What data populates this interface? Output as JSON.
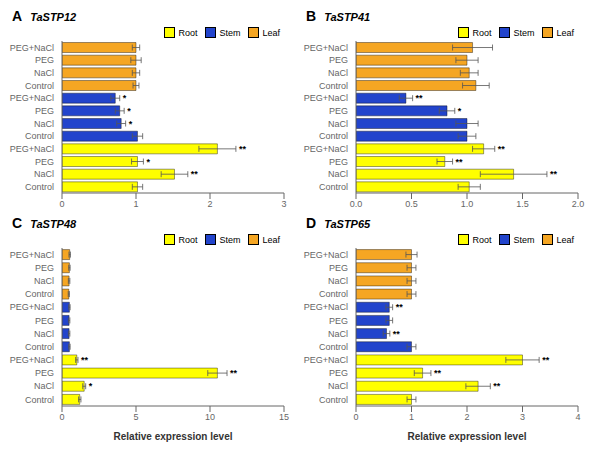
{
  "chart_data": [
    {
      "type": "bar",
      "orientation": "horizontal",
      "panel_label": "A",
      "title": "TaSTP12",
      "categories": [
        "Control",
        "NaCl",
        "PEG",
        "PEG+NaCl",
        "Control",
        "NaCl",
        "PEG",
        "PEG+NaCl",
        "Control",
        "NaCl",
        "PEG",
        "PEG+NaCl"
      ],
      "xlim": [
        0,
        3
      ],
      "xticks": [
        0,
        1,
        2,
        3
      ],
      "legend": "upper right",
      "series": [
        {
          "name": "Root",
          "color": "#FFFF00",
          "values": [
            1.02,
            1.52,
            1.02,
            2.1,
            null,
            null,
            null,
            null,
            null,
            null,
            null,
            null
          ],
          "errors": [
            0.07,
            0.18,
            0.08,
            0.25,
            null,
            null,
            null,
            null,
            null,
            null,
            null,
            null
          ],
          "annotations": [
            null,
            "**",
            "*",
            "**",
            null,
            null,
            null,
            null,
            null,
            null,
            null,
            null
          ]
        },
        {
          "name": "Stem",
          "color": "#2244CC",
          "values": [
            null,
            null,
            null,
            null,
            1.02,
            0.8,
            0.78,
            0.72,
            null,
            null,
            null,
            null
          ],
          "errors": [
            null,
            null,
            null,
            null,
            0.07,
            0.06,
            0.06,
            0.06,
            null,
            null,
            null,
            null
          ],
          "annotations": [
            null,
            null,
            null,
            null,
            null,
            "*",
            "*",
            "*",
            null,
            null,
            null,
            null
          ]
        },
        {
          "name": "Leaf",
          "color": "#F5A623",
          "values": [
            null,
            null,
            null,
            null,
            null,
            null,
            null,
            null,
            1.0,
            1.0,
            1.0,
            1.0
          ],
          "errors": [
            null,
            null,
            null,
            null,
            null,
            null,
            null,
            null,
            0.04,
            0.05,
            0.07,
            0.05
          ],
          "annotations": [
            null,
            null,
            null,
            null,
            null,
            null,
            null,
            null,
            null,
            null,
            null,
            null
          ]
        }
      ]
    },
    {
      "type": "bar",
      "orientation": "horizontal",
      "panel_label": "B",
      "title": "TaSTP41",
      "categories": [
        "Control",
        "NaCl",
        "PEG",
        "PEG+NaCl",
        "Control",
        "NaCl",
        "PEG",
        "PEG+NaCl",
        "Control",
        "NaCl",
        "PEG",
        "PEG+NaCl"
      ],
      "xlim": [
        0,
        2.0
      ],
      "xticks": [
        {
          "value": 0,
          "label": "0.0"
        },
        0.5,
        {
          "value": 1.0,
          "label": "1.0"
        },
        1.5,
        {
          "value": 2.0,
          "label": "2.0"
        }
      ],
      "legend": "upper right",
      "series": [
        {
          "name": "Root",
          "color": "#FFFF00",
          "values": [
            1.02,
            1.42,
            0.8,
            1.15,
            null,
            null,
            null,
            null,
            null,
            null,
            null,
            null
          ],
          "errors": [
            0.1,
            0.3,
            0.07,
            0.1,
            null,
            null,
            null,
            null,
            null,
            null,
            null,
            null
          ],
          "annotations": [
            null,
            "**",
            "**",
            "**",
            null,
            null,
            null,
            null,
            null,
            null,
            null,
            null
          ]
        },
        {
          "name": "Stem",
          "color": "#2244CC",
          "values": [
            null,
            null,
            null,
            null,
            1.0,
            1.0,
            0.82,
            0.45,
            null,
            null,
            null,
            null
          ],
          "errors": [
            null,
            null,
            null,
            null,
            0.08,
            0.1,
            0.07,
            0.06,
            null,
            null,
            null,
            null
          ],
          "annotations": [
            null,
            null,
            null,
            null,
            null,
            null,
            "*",
            "**",
            null,
            null,
            null,
            null
          ]
        },
        {
          "name": "Leaf",
          "color": "#F5A623",
          "values": [
            null,
            null,
            null,
            null,
            null,
            null,
            null,
            null,
            1.08,
            1.02,
            1.0,
            1.05
          ],
          "errors": [
            null,
            null,
            null,
            null,
            null,
            null,
            null,
            null,
            0.12,
            0.08,
            0.1,
            0.18
          ],
          "annotations": [
            null,
            null,
            null,
            null,
            null,
            null,
            null,
            null,
            null,
            null,
            null,
            null
          ]
        }
      ]
    },
    {
      "type": "bar",
      "orientation": "horizontal",
      "panel_label": "C",
      "title": "TaSTP48",
      "xlabel": "Relative expression level",
      "categories": [
        "Control",
        "NaCl",
        "PEG",
        "PEG+NaCl",
        "Control",
        "NaCl",
        "PEG",
        "PEG+NaCl",
        "Control",
        "NaCl",
        "PEG",
        "PEG+NaCl"
      ],
      "xlim": [
        0,
        15
      ],
      "xticks": [
        0,
        5,
        10,
        15
      ],
      "legend": "upper right",
      "series": [
        {
          "name": "Root",
          "color": "#FFFF00",
          "values": [
            1.2,
            1.5,
            10.5,
            1.0,
            null,
            null,
            null,
            null,
            null,
            null,
            null,
            null
          ],
          "errors": [
            0.08,
            0.1,
            0.65,
            0.08,
            null,
            null,
            null,
            null,
            null,
            null,
            null,
            null
          ],
          "annotations": [
            null,
            "*",
            "**",
            "**",
            null,
            null,
            null,
            null,
            null,
            null,
            null,
            null
          ]
        },
        {
          "name": "Stem",
          "color": "#2244CC",
          "values": [
            null,
            null,
            null,
            null,
            0.5,
            0.48,
            0.48,
            0.5,
            null,
            null,
            null,
            null
          ],
          "errors": [
            null,
            null,
            null,
            null,
            0.05,
            0.05,
            0.05,
            0.05,
            null,
            null,
            null,
            null
          ],
          "annotations": [
            null,
            null,
            null,
            null,
            null,
            null,
            null,
            null,
            null,
            null,
            null,
            null
          ]
        },
        {
          "name": "Leaf",
          "color": "#F5A623",
          "values": [
            null,
            null,
            null,
            null,
            null,
            null,
            null,
            null,
            0.46,
            0.48,
            0.5,
            0.52
          ],
          "errors": [
            null,
            null,
            null,
            null,
            null,
            null,
            null,
            null,
            0.04,
            0.05,
            0.05,
            0.05
          ],
          "annotations": [
            null,
            null,
            null,
            null,
            null,
            null,
            null,
            null,
            null,
            null,
            null,
            null
          ]
        }
      ]
    },
    {
      "type": "bar",
      "orientation": "horizontal",
      "panel_label": "D",
      "title": "TaSTP65",
      "xlabel": "Relative expression level",
      "categories": [
        "Control",
        "NaCl",
        "PEG",
        "PEG+NaCl",
        "Control",
        "NaCl",
        "PEG",
        "PEG+NaCl",
        "Control",
        "NaCl",
        "PEG",
        "PEG+NaCl"
      ],
      "xlim": [
        0,
        4
      ],
      "xticks": [
        0,
        1,
        2,
        3,
        4
      ],
      "legend": "upper right",
      "series": [
        {
          "name": "Root",
          "color": "#FFFF00",
          "values": [
            1.0,
            2.2,
            1.2,
            3.0,
            null,
            null,
            null,
            null,
            null,
            null,
            null,
            null
          ],
          "errors": [
            0.08,
            0.22,
            0.15,
            0.3,
            null,
            null,
            null,
            null,
            null,
            null,
            null,
            null
          ],
          "annotations": [
            null,
            "**",
            "**",
            "**",
            null,
            null,
            null,
            null,
            null,
            null,
            null,
            null
          ]
        },
        {
          "name": "Stem",
          "color": "#2244CC",
          "values": [
            null,
            null,
            null,
            null,
            1.0,
            0.55,
            0.6,
            0.6,
            null,
            null,
            null,
            null
          ],
          "errors": [
            null,
            null,
            null,
            null,
            0.08,
            0.06,
            0.06,
            0.06,
            null,
            null,
            null,
            null
          ],
          "annotations": [
            null,
            null,
            null,
            null,
            null,
            "**",
            null,
            "**",
            null,
            null,
            null,
            null
          ]
        },
        {
          "name": "Leaf",
          "color": "#F5A623",
          "values": [
            null,
            null,
            null,
            null,
            null,
            null,
            null,
            null,
            1.0,
            1.0,
            1.0,
            1.0
          ],
          "errors": [
            null,
            null,
            null,
            null,
            null,
            null,
            null,
            null,
            0.08,
            0.08,
            0.08,
            0.1
          ],
          "annotations": [
            null,
            null,
            null,
            null,
            null,
            null,
            null,
            null,
            null,
            null,
            null,
            null
          ]
        }
      ]
    }
  ]
}
